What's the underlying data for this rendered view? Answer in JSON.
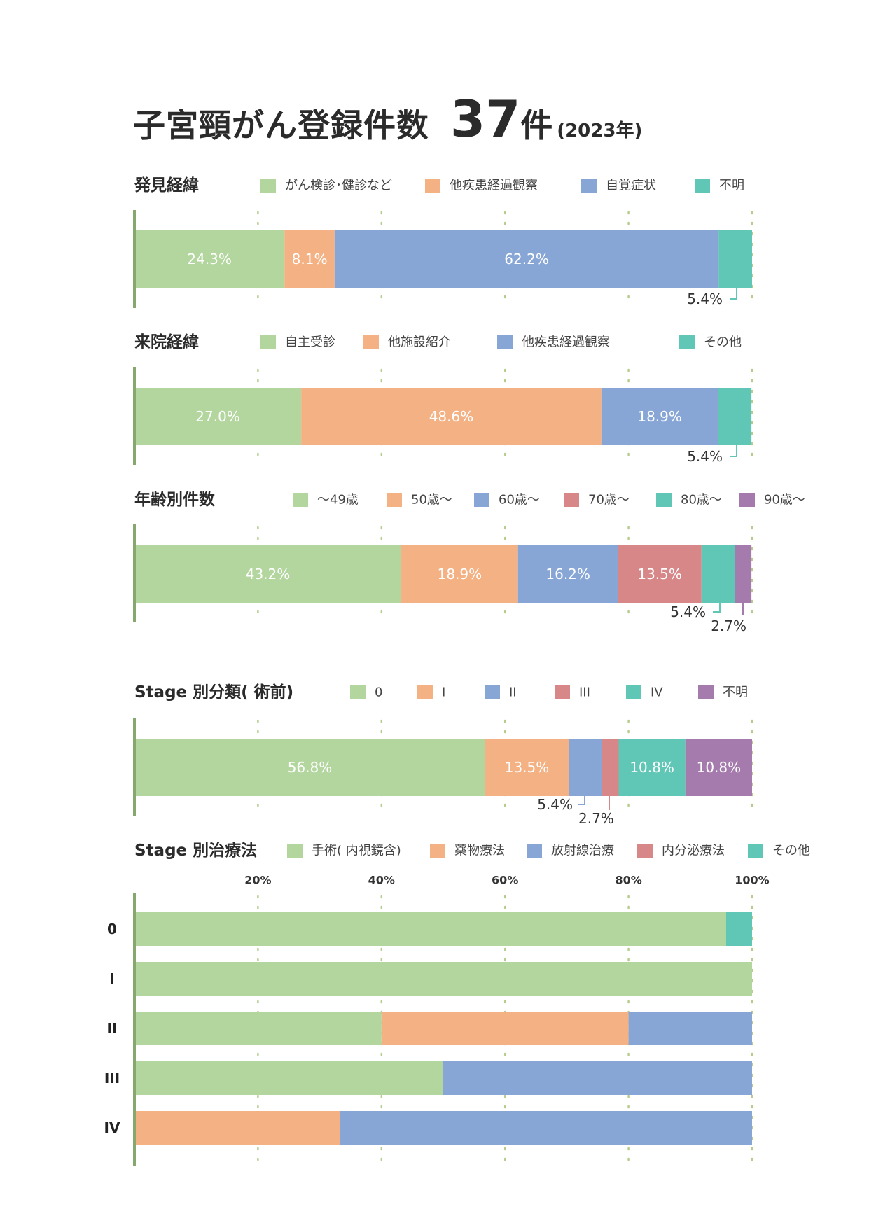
{
  "title": {
    "main": "子宮頸がん登録件数",
    "count": "37",
    "unit": "件",
    "year": "(2023年)"
  },
  "colors": {
    "green": "#b3d69e",
    "orange": "#f4b183",
    "blue": "#87a6d6",
    "red": "#d78788",
    "teal": "#60c6b6",
    "purple": "#a57aac",
    "axis": "#86a86e",
    "grid": "#b5cc8e",
    "label_text": "#ffffff",
    "dark_text": "#333333"
  },
  "chart_data": [
    {
      "type": "bar",
      "orientation": "horizontal-stacked-100",
      "title": "発見経緯",
      "legend": [
        "がん検診･健診など",
        "他疾患経過観察",
        "自覚症状",
        "不明"
      ],
      "series": [
        {
          "name": "がん検診･健診など",
          "value": 24.3,
          "label": "24.3%",
          "color": "green"
        },
        {
          "name": "他疾患経過観察",
          "value": 8.1,
          "label": "8.1%",
          "color": "orange"
        },
        {
          "name": "自覚症状",
          "value": 62.2,
          "label": "62.2%",
          "color": "blue"
        },
        {
          "name": "不明",
          "value": 5.4,
          "label": "5.4%",
          "color": "teal",
          "callout": true
        }
      ],
      "xlim": [
        0,
        100
      ],
      "grid": true
    },
    {
      "type": "bar",
      "orientation": "horizontal-stacked-100",
      "title": "来院経緯",
      "legend": [
        "自主受診",
        "他施設紹介",
        "他疾患経過観察",
        "その他"
      ],
      "series": [
        {
          "name": "自主受診",
          "value": 27.0,
          "label": "27.0%",
          "color": "green"
        },
        {
          "name": "他施設紹介",
          "value": 48.6,
          "label": "48.6%",
          "color": "orange"
        },
        {
          "name": "他疾患経過観察",
          "value": 18.9,
          "label": "18.9%",
          "color": "blue"
        },
        {
          "name": "その他",
          "value": 5.4,
          "label": "5.4%",
          "color": "teal",
          "callout": true
        }
      ],
      "xlim": [
        0,
        100
      ],
      "grid": true
    },
    {
      "type": "bar",
      "orientation": "horizontal-stacked-100",
      "title": "年齢別件数",
      "legend": [
        "～49歳",
        "50歳～",
        "60歳～",
        "70歳～",
        "80歳～",
        "90歳～"
      ],
      "series": [
        {
          "name": "～49歳",
          "value": 43.2,
          "label": "43.2%",
          "color": "green"
        },
        {
          "name": "50歳～",
          "value": 18.9,
          "label": "18.9%",
          "color": "orange"
        },
        {
          "name": "60歳～",
          "value": 16.2,
          "label": "16.2%",
          "color": "blue"
        },
        {
          "name": "70歳～",
          "value": 13.5,
          "label": "13.5%",
          "color": "red"
        },
        {
          "name": "80歳～",
          "value": 5.4,
          "label": "5.4%",
          "color": "teal",
          "callout": true
        },
        {
          "name": "90歳～",
          "value": 2.7,
          "label": "2.7%",
          "color": "purple",
          "callout": true
        }
      ],
      "xlim": [
        0,
        100
      ],
      "grid": true
    },
    {
      "type": "bar",
      "orientation": "horizontal-stacked-100",
      "title": "Stage 別分類( 術前)",
      "legend": [
        "0",
        "I",
        "II",
        "III",
        "IV",
        "不明"
      ],
      "series": [
        {
          "name": "0",
          "value": 56.8,
          "label": "56.8%",
          "color": "green"
        },
        {
          "name": "I",
          "value": 13.5,
          "label": "13.5%",
          "color": "orange"
        },
        {
          "name": "II",
          "value": 5.4,
          "label": "5.4%",
          "color": "blue",
          "callout": true
        },
        {
          "name": "III",
          "value": 2.7,
          "label": "2.7%",
          "color": "red",
          "callout": true
        },
        {
          "name": "IV",
          "value": 10.8,
          "label": "10.8%",
          "color": "teal"
        },
        {
          "name": "不明",
          "value": 10.8,
          "label": "10.8%",
          "color": "purple"
        }
      ],
      "xlim": [
        0,
        100
      ],
      "grid": true
    },
    {
      "type": "bar",
      "orientation": "horizontal-stacked-100",
      "title": "Stage 別治療法",
      "legend": [
        "手術( 内視鏡含)",
        "薬物療法",
        "放射線治療",
        "内分泌療法",
        "その他"
      ],
      "legend_colors": [
        "green",
        "orange",
        "blue",
        "red",
        "teal"
      ],
      "xticks": [
        "20%",
        "40%",
        "60%",
        "80%",
        "100%"
      ],
      "categories": [
        "0",
        "I",
        "II",
        "III",
        "IV"
      ],
      "rows": [
        {
          "category": "0",
          "segments": [
            {
              "color": "green",
              "value": 95.8
            },
            {
              "color": "teal",
              "value": 4.2
            }
          ]
        },
        {
          "category": "I",
          "segments": [
            {
              "color": "green",
              "value": 100
            }
          ]
        },
        {
          "category": "II",
          "segments": [
            {
              "color": "green",
              "value": 40
            },
            {
              "color": "orange",
              "value": 40
            },
            {
              "color": "blue",
              "value": 20
            }
          ]
        },
        {
          "category": "III",
          "segments": [
            {
              "color": "green",
              "value": 50
            },
            {
              "color": "blue",
              "value": 50
            }
          ]
        },
        {
          "category": "IV",
          "segments": [
            {
              "color": "orange",
              "value": 33.3
            },
            {
              "color": "blue",
              "value": 66.7
            }
          ]
        }
      ],
      "xlim": [
        0,
        100
      ],
      "grid": true
    }
  ]
}
